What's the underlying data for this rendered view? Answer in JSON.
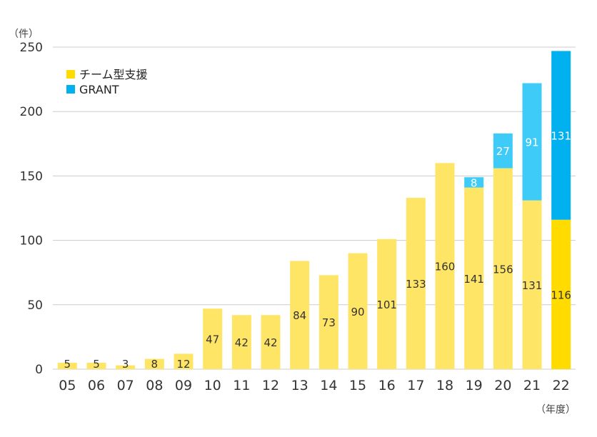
{
  "chart_data": {
    "type": "bar",
    "stacked": true,
    "y_unit_label": "（件）",
    "x_unit_label": "（年度）",
    "ylim": [
      0,
      250
    ],
    "yticks": [
      "0",
      "50",
      "100",
      "150",
      "200",
      "250"
    ],
    "grid": true,
    "legend_position": "top-left",
    "categories": [
      "05",
      "06",
      "07",
      "08",
      "09",
      "10",
      "11",
      "12",
      "13",
      "14",
      "15",
      "16",
      "17",
      "18",
      "19",
      "20",
      "21",
      "22"
    ],
    "series": [
      {
        "name": "チーム型支援",
        "values": [
          5,
          5,
          3,
          8,
          12,
          47,
          42,
          42,
          84,
          73,
          90,
          101,
          133,
          160,
          141,
          156,
          131,
          116
        ],
        "labels": [
          "5",
          "5",
          "3",
          "8",
          "12",
          "47",
          "42",
          "42",
          "84",
          "73",
          "90",
          "101",
          "133",
          "160",
          "141",
          "156",
          "131",
          "116"
        ]
      },
      {
        "name": "GRANT",
        "values": [
          0,
          0,
          0,
          0,
          0,
          0,
          0,
          0,
          0,
          0,
          0,
          0,
          0,
          0,
          8,
          27,
          91,
          131
        ],
        "labels": [
          "",
          "",
          "",
          "",
          "",
          "",
          "",
          "",
          "",
          "",
          "",
          "",
          "",
          "",
          "8",
          "27",
          "91",
          "131"
        ]
      }
    ],
    "colors": {
      "team_light": "#FFE566",
      "team_highlight": "#FFDB00",
      "grant_light": "#3FCBF7",
      "grant_highlight": "#00B0EF",
      "grid": "#cccccc",
      "label_dark": "#333333",
      "label_light": "#ffffff"
    },
    "highlight_category": "22"
  }
}
